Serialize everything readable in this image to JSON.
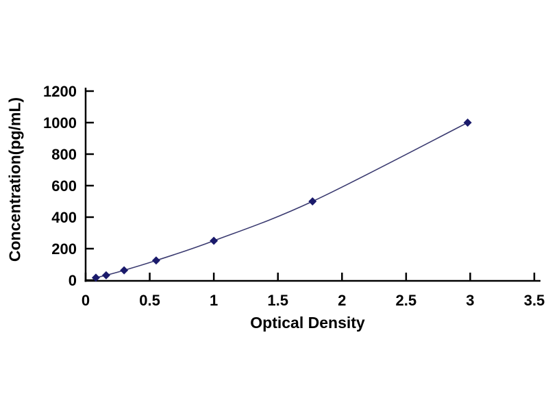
{
  "figure": {
    "background_color": "#ffffff",
    "axis_color": "#000000",
    "text_color": "#000000"
  },
  "chart_data": {
    "type": "line",
    "title": "",
    "xlabel": "Optical Density",
    "ylabel": "Concentration(pg/mL)",
    "xlim": [
      0,
      3.5
    ],
    "ylim": [
      0,
      1200
    ],
    "xticks": [
      0,
      0.5,
      1,
      1.5,
      2,
      2.5,
      3,
      3.5
    ],
    "xtick_labels": [
      "0",
      "0.5",
      "1",
      "1.5",
      "2",
      "2.5",
      "3",
      "3.5"
    ],
    "yticks": [
      0,
      200,
      400,
      600,
      800,
      1000,
      1200
    ],
    "ytick_labels": [
      "0",
      "200",
      "400",
      "600",
      "800",
      "1000",
      "1200"
    ],
    "grid": false,
    "legend_position": "none",
    "series": [
      {
        "name": "standard-curve",
        "marker": "diamond",
        "line_color": "#3a3a70",
        "marker_color": "#1a1a6b",
        "x": [
          0.08,
          0.16,
          0.3,
          0.55,
          1.0,
          1.77,
          2.98
        ],
        "y": [
          15.6,
          31.2,
          62.5,
          125,
          250,
          500,
          1000
        ]
      }
    ]
  }
}
